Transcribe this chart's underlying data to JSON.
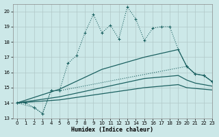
{
  "xlabel": "Humidex (Indice chaleur)",
  "xlim": [
    -0.5,
    23
  ],
  "ylim": [
    13,
    20.5
  ],
  "yticks": [
    13,
    14,
    15,
    16,
    17,
    18,
    19,
    20
  ],
  "xticks": [
    0,
    1,
    2,
    3,
    4,
    5,
    6,
    7,
    8,
    9,
    10,
    11,
    12,
    13,
    14,
    15,
    16,
    17,
    18,
    19,
    20,
    21,
    22,
    23
  ],
  "bg_color": "#cce8e8",
  "grid_color": "#b0c8c8",
  "line_color": "#1a6060",
  "series_main": {
    "x": [
      0,
      1,
      2,
      3,
      4,
      5,
      6,
      7,
      8,
      9,
      10,
      11,
      12,
      13,
      14,
      15,
      16,
      17,
      18,
      19,
      20,
      21,
      22,
      23
    ],
    "y": [
      14.0,
      14.0,
      13.7,
      13.3,
      14.8,
      14.8,
      16.6,
      17.1,
      18.6,
      19.8,
      18.6,
      19.1,
      18.2,
      20.3,
      19.5,
      18.1,
      18.9,
      19.0,
      19.0,
      17.5,
      16.4,
      15.9,
      15.8,
      15.4
    ]
  },
  "series_envelope": {
    "x": [
      0,
      2,
      3,
      4,
      5,
      20,
      21,
      22,
      23
    ],
    "y": [
      14.0,
      13.7,
      13.3,
      14.8,
      14.8,
      16.4,
      15.9,
      15.8,
      15.4
    ]
  },
  "series_upper_smooth": {
    "x": [
      0,
      5,
      10,
      15,
      19,
      20,
      21,
      22,
      23
    ],
    "y": [
      14.0,
      14.9,
      16.2,
      17.0,
      17.5,
      16.4,
      15.9,
      15.8,
      15.4
    ]
  },
  "series_lower_smooth1": {
    "x": [
      0,
      5,
      10,
      15,
      19,
      20,
      21,
      22,
      23
    ],
    "y": [
      14.0,
      14.4,
      15.0,
      15.6,
      15.8,
      15.5,
      15.3,
      15.2,
      15.1
    ]
  },
  "series_lower_smooth2": {
    "x": [
      0,
      5,
      10,
      15,
      19,
      20,
      21,
      22,
      23
    ],
    "y": [
      14.0,
      14.2,
      14.6,
      15.0,
      15.2,
      15.0,
      14.95,
      14.9,
      14.85
    ]
  }
}
